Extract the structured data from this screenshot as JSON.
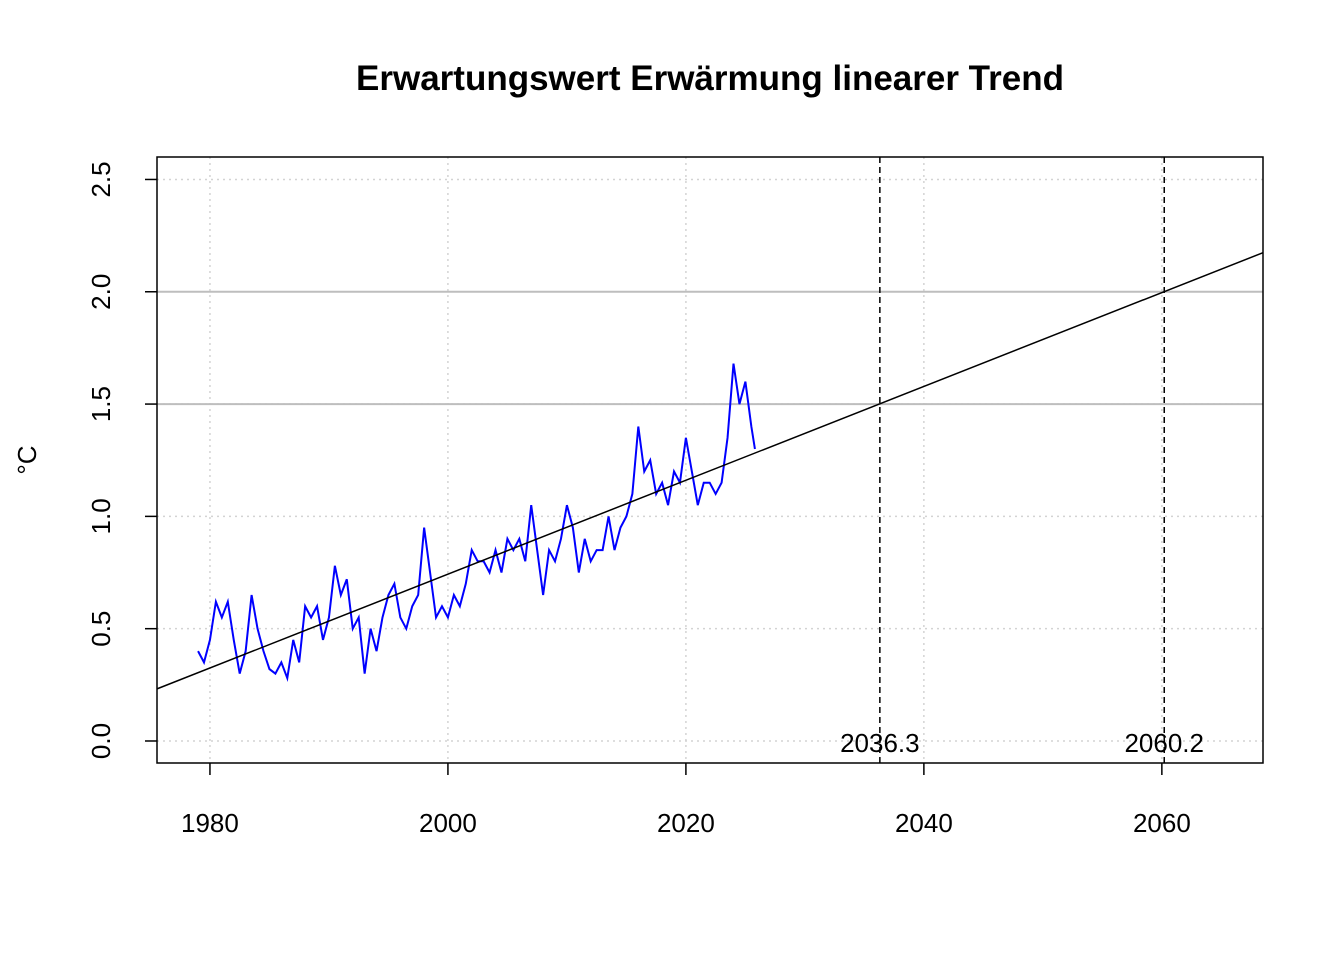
{
  "chart_data": {
    "type": "line",
    "title": "Erwartungswert Erwärmung linearer Trend",
    "ylabel": "°C",
    "xlim": [
      1975.55,
      2068.5
    ],
    "ylim": [
      -0.098,
      2.6
    ],
    "xticks": [
      1980,
      2000,
      2020,
      2040,
      2060
    ],
    "yticks": [
      {
        "value": 0,
        "label": "0.0"
      },
      0.5,
      {
        "value": 1,
        "label": "1.0"
      },
      1.5,
      {
        "value": 2,
        "label": "2.0"
      },
      2.5
    ],
    "grid": true,
    "series": [
      {
        "color": "#0000ff",
        "x": [
          1979,
          1979.5,
          1980,
          1980.5,
          1981,
          1981.5,
          1982,
          1982.5,
          1983,
          1983.5,
          1984,
          1984.5,
          1985,
          1985.5,
          1986,
          1986.5,
          1987,
          1987.5,
          1988,
          1988.5,
          1989,
          1989.5,
          1990,
          1990.5,
          1991,
          1991.5,
          1992,
          1992.5,
          1993,
          1993.5,
          1994,
          1994.5,
          1995,
          1995.5,
          1996,
          1996.5,
          1997,
          1997.5,
          1998,
          1998.5,
          1999,
          1999.5,
          2000,
          2000.5,
          2001,
          2001.5,
          2002,
          2002.5,
          2003,
          2003.5,
          2004,
          2004.5,
          2005,
          2005.5,
          2006,
          2006.5,
          2007,
          2007.5,
          2008,
          2008.5,
          2009,
          2009.5,
          2010,
          2010.5,
          2011,
          2011.5,
          2012,
          2012.5,
          2013,
          2013.5,
          2014,
          2014.5,
          2015,
          2015.5,
          2016,
          2016.5,
          2017,
          2017.5,
          2018,
          2018.5,
          2019,
          2019.5,
          2020,
          2020.5,
          2021,
          2021.5,
          2022,
          2022.5,
          2023,
          2023.5,
          2024,
          2024.5,
          2025,
          2025.5,
          2025.8
        ],
        "values": [
          0.4,
          0.35,
          0.45,
          0.62,
          0.55,
          0.62,
          0.45,
          0.3,
          0.4,
          0.65,
          0.5,
          0.4,
          0.32,
          0.3,
          0.35,
          0.28,
          0.45,
          0.35,
          0.6,
          0.55,
          0.6,
          0.45,
          0.55,
          0.78,
          0.65,
          0.72,
          0.5,
          0.55,
          0.3,
          0.5,
          0.4,
          0.55,
          0.65,
          0.7,
          0.55,
          0.5,
          0.6,
          0.65,
          0.95,
          0.75,
          0.55,
          0.6,
          0.55,
          0.65,
          0.6,
          0.7,
          0.85,
          0.8,
          0.8,
          0.75,
          0.85,
          0.75,
          0.9,
          0.85,
          0.9,
          0.8,
          1.05,
          0.85,
          0.65,
          0.85,
          0.8,
          0.9,
          1.05,
          0.95,
          0.75,
          0.9,
          0.8,
          0.85,
          0.85,
          1.0,
          0.85,
          0.95,
          1.0,
          1.1,
          1.4,
          1.2,
          1.25,
          1.1,
          1.15,
          1.05,
          1.2,
          1.15,
          1.35,
          1.2,
          1.05,
          1.15,
          1.15,
          1.1,
          1.15,
          1.35,
          1.68,
          1.5,
          1.6,
          1.4,
          1.3
        ]
      }
    ],
    "trend": {
      "color": "#000000",
      "x": [
        1975.55,
        2068.5
      ],
      "values": [
        0.232,
        2.174
      ]
    },
    "hlines": [
      1.5,
      2.0
    ],
    "vlines": [
      2036.3,
      2060.2
    ]
  }
}
